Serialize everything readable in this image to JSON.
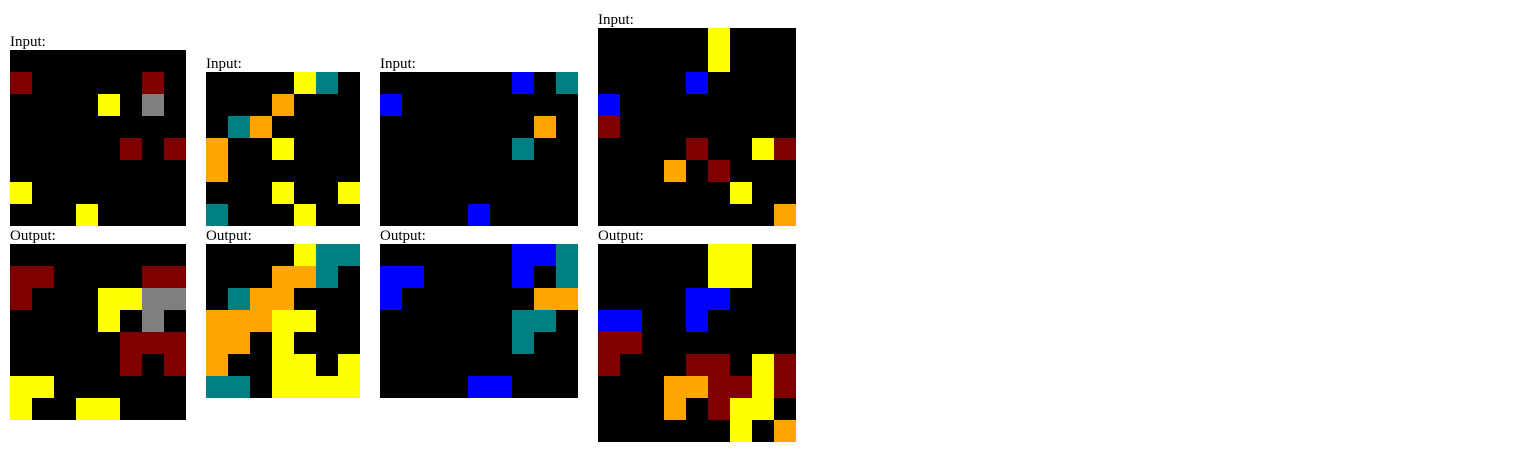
{
  "palette": {
    "0": "#000000",
    "1": "#0000ff",
    "4": "#ffff00",
    "5": "#808080",
    "7": "#ffa500",
    "8": "#008080",
    "9": "#800000"
  },
  "examples": [
    {
      "input_label": "Input:",
      "output_label": "Output:",
      "input": [
        [
          0,
          0,
          0,
          0,
          0,
          0,
          0,
          0
        ],
        [
          9,
          0,
          0,
          0,
          0,
          0,
          9,
          0
        ],
        [
          0,
          0,
          0,
          0,
          4,
          0,
          5,
          0
        ],
        [
          0,
          0,
          0,
          0,
          0,
          0,
          0,
          0
        ],
        [
          0,
          0,
          0,
          0,
          0,
          9,
          0,
          9
        ],
        [
          0,
          0,
          0,
          0,
          0,
          0,
          0,
          0
        ],
        [
          4,
          0,
          0,
          0,
          0,
          0,
          0,
          0
        ],
        [
          0,
          0,
          0,
          4,
          0,
          0,
          0,
          0
        ]
      ],
      "output": [
        [
          0,
          0,
          0,
          0,
          0,
          0,
          0,
          0
        ],
        [
          9,
          9,
          0,
          0,
          0,
          0,
          9,
          9
        ],
        [
          9,
          0,
          0,
          0,
          4,
          4,
          5,
          5
        ],
        [
          0,
          0,
          0,
          0,
          4,
          0,
          5,
          0
        ],
        [
          0,
          0,
          0,
          0,
          0,
          9,
          9,
          9
        ],
        [
          0,
          0,
          0,
          0,
          0,
          9,
          0,
          9
        ],
        [
          4,
          4,
          0,
          0,
          0,
          0,
          0,
          0
        ],
        [
          4,
          0,
          0,
          4,
          4,
          0,
          0,
          0
        ]
      ]
    },
    {
      "input_label": "Input:",
      "output_label": "Output:",
      "input": [
        [
          0,
          0,
          0,
          0,
          4,
          8,
          0
        ],
        [
          0,
          0,
          0,
          7,
          0,
          0,
          0
        ],
        [
          0,
          8,
          7,
          0,
          0,
          0,
          0
        ],
        [
          7,
          0,
          0,
          4,
          0,
          0,
          0
        ],
        [
          7,
          0,
          0,
          0,
          0,
          0,
          0
        ],
        [
          0,
          0,
          0,
          4,
          0,
          0,
          4
        ],
        [
          8,
          0,
          0,
          0,
          4,
          0,
          0
        ]
      ],
      "output": [
        [
          0,
          0,
          0,
          0,
          4,
          8,
          8
        ],
        [
          0,
          0,
          0,
          7,
          7,
          8,
          0
        ],
        [
          0,
          8,
          7,
          7,
          0,
          0,
          0
        ],
        [
          7,
          7,
          7,
          4,
          4,
          0,
          0
        ],
        [
          7,
          7,
          0,
          4,
          0,
          0,
          0
        ],
        [
          7,
          0,
          0,
          4,
          4,
          0,
          4
        ],
        [
          8,
          8,
          0,
          4,
          4,
          4,
          4
        ]
      ]
    },
    {
      "input_label": "Input:",
      "output_label": "Output:",
      "input": [
        [
          0,
          0,
          0,
          0,
          0,
          0,
          1,
          0,
          8
        ],
        [
          1,
          0,
          0,
          0,
          0,
          0,
          0,
          0,
          0
        ],
        [
          0,
          0,
          0,
          0,
          0,
          0,
          0,
          7,
          0
        ],
        [
          0,
          0,
          0,
          0,
          0,
          0,
          8,
          0,
          0
        ],
        [
          0,
          0,
          0,
          0,
          0,
          0,
          0,
          0,
          0
        ],
        [
          0,
          0,
          0,
          0,
          0,
          0,
          0,
          0,
          0
        ],
        [
          0,
          0,
          0,
          0,
          1,
          0,
          0,
          0,
          0
        ]
      ],
      "output": [
        [
          0,
          0,
          0,
          0,
          0,
          0,
          1,
          1,
          8
        ],
        [
          1,
          1,
          0,
          0,
          0,
          0,
          1,
          0,
          8
        ],
        [
          1,
          0,
          0,
          0,
          0,
          0,
          0,
          7,
          7
        ],
        [
          0,
          0,
          0,
          0,
          0,
          0,
          8,
          8,
          0
        ],
        [
          0,
          0,
          0,
          0,
          0,
          0,
          8,
          0,
          0
        ],
        [
          0,
          0,
          0,
          0,
          0,
          0,
          0,
          0,
          0
        ],
        [
          0,
          0,
          0,
          0,
          1,
          1,
          0,
          0,
          0
        ]
      ]
    },
    {
      "input_label": "Input:",
      "output_label": "Output:",
      "input": [
        [
          0,
          0,
          0,
          0,
          0,
          4,
          0,
          0,
          0
        ],
        [
          0,
          0,
          0,
          0,
          0,
          4,
          0,
          0,
          0
        ],
        [
          0,
          0,
          0,
          0,
          1,
          0,
          0,
          0,
          0
        ],
        [
          1,
          0,
          0,
          0,
          0,
          0,
          0,
          0,
          0
        ],
        [
          9,
          0,
          0,
          0,
          0,
          0,
          0,
          0,
          0
        ],
        [
          0,
          0,
          0,
          0,
          9,
          0,
          0,
          4,
          9
        ],
        [
          0,
          0,
          0,
          7,
          0,
          9,
          0,
          0,
          0
        ],
        [
          0,
          0,
          0,
          0,
          0,
          0,
          4,
          0,
          0
        ],
        [
          0,
          0,
          0,
          0,
          0,
          0,
          0,
          0,
          7
        ]
      ],
      "output": [
        [
          0,
          0,
          0,
          0,
          0,
          4,
          4,
          0,
          0
        ],
        [
          0,
          0,
          0,
          0,
          0,
          4,
          4,
          0,
          0
        ],
        [
          0,
          0,
          0,
          0,
          1,
          1,
          0,
          0,
          0
        ],
        [
          1,
          1,
          0,
          0,
          1,
          0,
          0,
          0,
          0
        ],
        [
          9,
          9,
          0,
          0,
          0,
          0,
          0,
          0,
          0
        ],
        [
          9,
          0,
          0,
          0,
          9,
          9,
          0,
          4,
          9
        ],
        [
          0,
          0,
          0,
          7,
          7,
          9,
          9,
          4,
          9
        ],
        [
          0,
          0,
          0,
          7,
          0,
          9,
          4,
          4,
          0
        ],
        [
          0,
          0,
          0,
          0,
          0,
          0,
          4,
          0,
          7
        ]
      ]
    }
  ]
}
